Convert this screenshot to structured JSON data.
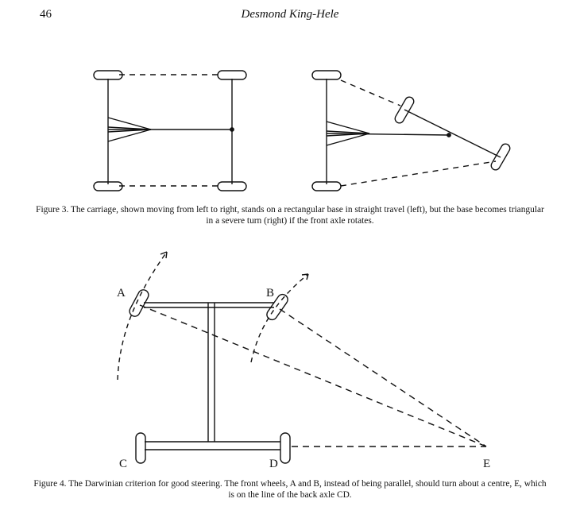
{
  "header": {
    "page_number": "46",
    "running_head": "Desmond King-Hele"
  },
  "figure3": {
    "caption": "Figure 3. The carriage, shown moving from left to right, stands on a rectangular base in straight travel (left), but the base becomes triangular in a severe turn (right) if the front axle rotates."
  },
  "figure4": {
    "caption": "Figure 4. The Darwinian criterion for good steering. The front wheels, A and B, instead of being parallel, should turn about a centre, E, which is on the line of the back axle CD.",
    "labels": {
      "a": "A",
      "b": "B",
      "c": "C",
      "d": "D",
      "e": "E"
    }
  },
  "colors": {
    "ink": "#111111",
    "paper": "#ffffff"
  }
}
